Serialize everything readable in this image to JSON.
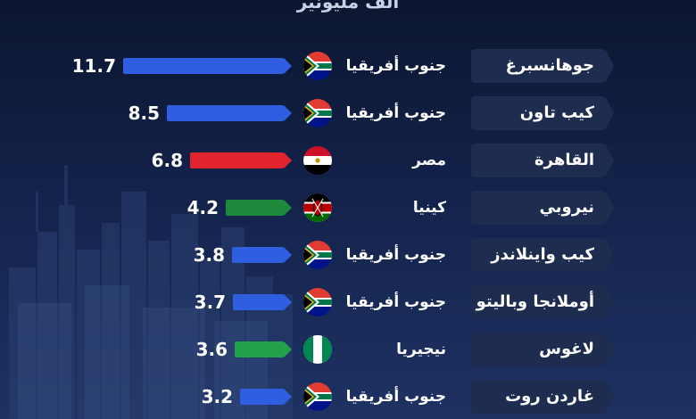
{
  "header": {
    "unit": "ألف مليونير"
  },
  "colors": {
    "south_africa": "#2f5ee0",
    "egypt": "#e2242f",
    "kenya": "#1c8a3a",
    "nigeria": "#22a24a"
  },
  "chart_data": {
    "type": "bar",
    "orientation": "horizontal",
    "title": "",
    "unit": "ألف مليونير",
    "categories": [
      "جوهانسبرغ",
      "كيب تاون",
      "القاهرة",
      "نيروبي",
      "كيب واينلاندز",
      "أوملانجا وباليتو",
      "لاغوس",
      "غاردن روت"
    ],
    "countries": [
      "جنوب أفريقيا",
      "جنوب أفريقيا",
      "مصر",
      "كينيا",
      "جنوب أفريقيا",
      "جنوب أفريقيا",
      "نيجيريا",
      "جنوب أفريقيا"
    ],
    "values": [
      11.7,
      8.5,
      6.8,
      4.2,
      3.8,
      3.7,
      3.6,
      3.2
    ],
    "labels": [
      "11.7",
      "8.5",
      "6.8",
      "4.2",
      "3.8",
      "3.7",
      "3.6",
      "3.2"
    ],
    "flags": [
      "south-africa-flag-icon",
      "south-africa-flag-icon",
      "egypt-flag-icon",
      "kenya-flag-icon",
      "south-africa-flag-icon",
      "south-africa-flag-icon",
      "nigeria-flag-icon",
      "south-africa-flag-icon"
    ],
    "bar_colors": [
      "#2f5ee0",
      "#2f5ee0",
      "#e2242f",
      "#1c8a3a",
      "#2f5ee0",
      "#2f5ee0",
      "#22a24a",
      "#2f5ee0"
    ],
    "xlim": [
      0,
      11.7
    ]
  }
}
